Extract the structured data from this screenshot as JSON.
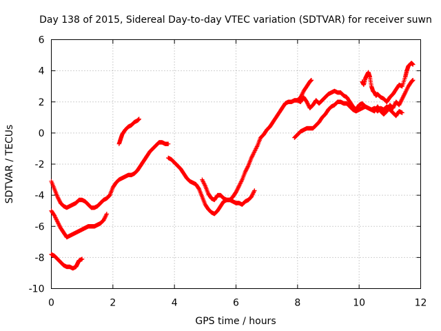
{
  "chart_data": {
    "type": "scatter",
    "title": "Day 138 of 2015, Sidereal Day-to-day VTEC variation (SDTVAR) for receiver suwn",
    "xlabel": "GPS time / hours",
    "ylabel": "SDTVAR / TECUs",
    "xlim": [
      0,
      12
    ],
    "ylim": [
      -10,
      6
    ],
    "xticks": [
      "0",
      "2",
      "4",
      "6",
      "8",
      "10",
      "12"
    ],
    "yticks": [
      "-10",
      "-8",
      "-6",
      "-4",
      "-2",
      "0",
      "2",
      "4",
      "6"
    ],
    "grid": true,
    "legend": "none",
    "marker": "plus",
    "color": "#ff0000",
    "series": [
      {
        "values": [
          [
            0.0,
            -7.8
          ],
          [
            0.1,
            -7.9
          ],
          [
            0.2,
            -8.1
          ],
          [
            0.3,
            -8.3
          ],
          [
            0.4,
            -8.5
          ],
          [
            0.5,
            -8.6
          ],
          [
            0.6,
            -8.6
          ],
          [
            0.7,
            -8.7
          ],
          [
            0.8,
            -8.6
          ],
          [
            0.85,
            -8.4
          ],
          [
            0.9,
            -8.2
          ],
          [
            1.0,
            -8.1
          ]
        ]
      },
      {
        "values": [
          [
            0.0,
            -5.0
          ],
          [
            0.1,
            -5.3
          ],
          [
            0.2,
            -5.7
          ],
          [
            0.3,
            -6.1
          ],
          [
            0.4,
            -6.4
          ],
          [
            0.5,
            -6.7
          ],
          [
            0.6,
            -6.6
          ],
          [
            0.7,
            -6.5
          ],
          [
            0.8,
            -6.4
          ],
          [
            0.9,
            -6.3
          ],
          [
            1.0,
            -6.2
          ],
          [
            1.1,
            -6.1
          ],
          [
            1.2,
            -6.0
          ],
          [
            1.3,
            -6.0
          ],
          [
            1.4,
            -6.0
          ],
          [
            1.5,
            -5.9
          ],
          [
            1.6,
            -5.8
          ],
          [
            1.7,
            -5.6
          ],
          [
            1.8,
            -5.2
          ]
        ]
      },
      {
        "values": [
          [
            0.0,
            -3.1
          ],
          [
            0.1,
            -3.6
          ],
          [
            0.2,
            -4.1
          ],
          [
            0.3,
            -4.5
          ],
          [
            0.4,
            -4.7
          ],
          [
            0.5,
            -4.8
          ],
          [
            0.6,
            -4.7
          ],
          [
            0.7,
            -4.6
          ],
          [
            0.8,
            -4.5
          ],
          [
            0.9,
            -4.3
          ],
          [
            1.0,
            -4.3
          ],
          [
            1.1,
            -4.4
          ],
          [
            1.2,
            -4.6
          ],
          [
            1.3,
            -4.8
          ],
          [
            1.4,
            -4.8
          ],
          [
            1.5,
            -4.7
          ],
          [
            1.6,
            -4.5
          ],
          [
            1.7,
            -4.3
          ],
          [
            1.8,
            -4.2
          ],
          [
            1.9,
            -4.0
          ],
          [
            2.0,
            -3.5
          ],
          [
            2.1,
            -3.2
          ],
          [
            2.2,
            -3.0
          ],
          [
            2.3,
            -2.9
          ],
          [
            2.4,
            -2.8
          ],
          [
            2.5,
            -2.7
          ],
          [
            2.6,
            -2.7
          ],
          [
            2.7,
            -2.6
          ],
          [
            2.8,
            -2.4
          ],
          [
            2.9,
            -2.1
          ],
          [
            3.0,
            -1.8
          ],
          [
            3.1,
            -1.5
          ],
          [
            3.2,
            -1.2
          ],
          [
            3.3,
            -1.0
          ],
          [
            3.4,
            -0.8
          ],
          [
            3.5,
            -0.6
          ],
          [
            3.6,
            -0.6
          ],
          [
            3.7,
            -0.7
          ],
          [
            3.8,
            -0.7
          ]
        ]
      },
      {
        "values": [
          [
            2.2,
            -0.7
          ],
          [
            2.25,
            -0.4
          ],
          [
            2.3,
            -0.1
          ],
          [
            2.4,
            0.2
          ],
          [
            2.5,
            0.4
          ],
          [
            2.6,
            0.5
          ],
          [
            2.7,
            0.7
          ],
          [
            2.8,
            0.8
          ],
          [
            2.85,
            0.9
          ]
        ]
      },
      {
        "values": [
          [
            3.8,
            -1.6
          ],
          [
            3.9,
            -1.7
          ],
          [
            4.0,
            -1.9
          ],
          [
            4.1,
            -2.1
          ],
          [
            4.2,
            -2.3
          ],
          [
            4.3,
            -2.6
          ],
          [
            4.4,
            -2.9
          ],
          [
            4.5,
            -3.1
          ],
          [
            4.6,
            -3.2
          ],
          [
            4.7,
            -3.3
          ],
          [
            4.8,
            -3.6
          ],
          [
            4.9,
            -4.1
          ],
          [
            5.0,
            -4.6
          ],
          [
            5.1,
            -4.9
          ],
          [
            5.2,
            -5.1
          ],
          [
            5.3,
            -5.2
          ],
          [
            5.4,
            -5.0
          ],
          [
            5.5,
            -4.7
          ],
          [
            5.6,
            -4.4
          ],
          [
            5.7,
            -4.3
          ],
          [
            5.8,
            -4.3
          ],
          [
            5.9,
            -4.1
          ],
          [
            6.0,
            -3.8
          ],
          [
            6.1,
            -3.4
          ],
          [
            6.2,
            -3.0
          ],
          [
            6.3,
            -2.5
          ],
          [
            6.4,
            -2.1
          ],
          [
            6.5,
            -1.6
          ],
          [
            6.6,
            -1.2
          ],
          [
            6.7,
            -0.8
          ],
          [
            6.8,
            -0.3
          ],
          [
            6.9,
            -0.1
          ],
          [
            7.0,
            0.2
          ],
          [
            7.1,
            0.4
          ],
          [
            7.2,
            0.7
          ],
          [
            7.3,
            1.0
          ],
          [
            7.4,
            1.3
          ],
          [
            7.5,
            1.6
          ],
          [
            7.6,
            1.9
          ],
          [
            7.7,
            2.0
          ],
          [
            7.8,
            2.0
          ],
          [
            7.9,
            2.1
          ],
          [
            8.0,
            2.1
          ],
          [
            8.1,
            2.0
          ],
          [
            8.2,
            2.3
          ],
          [
            8.3,
            2.0
          ],
          [
            8.4,
            1.6
          ],
          [
            8.5,
            1.8
          ],
          [
            8.6,
            2.1
          ],
          [
            8.7,
            1.9
          ],
          [
            8.8,
            2.1
          ],
          [
            8.9,
            2.3
          ],
          [
            9.0,
            2.5
          ],
          [
            9.1,
            2.6
          ],
          [
            9.2,
            2.7
          ],
          [
            9.3,
            2.6
          ],
          [
            9.4,
            2.6
          ],
          [
            9.5,
            2.4
          ],
          [
            9.6,
            2.3
          ],
          [
            9.7,
            2.0
          ],
          [
            9.8,
            1.7
          ],
          [
            9.9,
            1.5
          ],
          [
            10.0,
            1.8
          ],
          [
            10.1,
            1.9
          ],
          [
            10.2,
            1.7
          ],
          [
            10.3,
            1.6
          ],
          [
            10.4,
            1.5
          ],
          [
            10.5,
            1.4
          ],
          [
            10.6,
            1.7
          ],
          [
            10.7,
            1.4
          ],
          [
            10.8,
            1.2
          ],
          [
            10.9,
            1.4
          ],
          [
            11.0,
            1.8
          ],
          [
            11.1,
            1.6
          ],
          [
            11.2,
            2.0
          ],
          [
            11.3,
            1.8
          ],
          [
            11.4,
            2.2
          ],
          [
            11.5,
            2.6
          ],
          [
            11.6,
            3.0
          ],
          [
            11.7,
            3.3
          ],
          [
            11.75,
            3.4
          ]
        ]
      },
      {
        "values": [
          [
            4.9,
            -3.0
          ],
          [
            5.0,
            -3.4
          ],
          [
            5.1,
            -3.9
          ],
          [
            5.2,
            -4.2
          ],
          [
            5.3,
            -4.3
          ],
          [
            5.4,
            -4.0
          ],
          [
            5.5,
            -4.0
          ],
          [
            5.6,
            -4.2
          ],
          [
            5.7,
            -4.3
          ],
          [
            5.8,
            -4.3
          ],
          [
            5.9,
            -4.4
          ],
          [
            6.0,
            -4.5
          ],
          [
            6.1,
            -4.5
          ],
          [
            6.2,
            -4.6
          ],
          [
            6.3,
            -4.4
          ],
          [
            6.4,
            -4.3
          ],
          [
            6.5,
            -4.1
          ],
          [
            6.6,
            -3.7
          ]
        ]
      },
      {
        "values": [
          [
            7.9,
            -0.3
          ],
          [
            8.0,
            -0.1
          ],
          [
            8.1,
            0.1
          ],
          [
            8.2,
            0.2
          ],
          [
            8.3,
            0.3
          ],
          [
            8.4,
            0.3
          ],
          [
            8.5,
            0.3
          ],
          [
            8.6,
            0.5
          ],
          [
            8.7,
            0.7
          ],
          [
            8.8,
            1.0
          ],
          [
            8.9,
            1.2
          ],
          [
            9.0,
            1.5
          ],
          [
            9.1,
            1.7
          ],
          [
            9.2,
            1.8
          ],
          [
            9.3,
            2.0
          ],
          [
            9.4,
            2.0
          ],
          [
            9.5,
            1.9
          ],
          [
            9.6,
            1.9
          ],
          [
            9.7,
            1.7
          ],
          [
            9.8,
            1.5
          ],
          [
            9.9,
            1.4
          ],
          [
            10.0,
            1.5
          ],
          [
            10.1,
            1.6
          ],
          [
            10.2,
            1.7
          ],
          [
            10.3,
            1.6
          ],
          [
            10.4,
            1.5
          ],
          [
            10.5,
            1.6
          ],
          [
            10.6,
            1.4
          ],
          [
            10.7,
            1.6
          ],
          [
            10.8,
            1.5
          ],
          [
            10.9,
            1.7
          ],
          [
            11.0,
            1.5
          ],
          [
            11.1,
            1.3
          ],
          [
            11.2,
            1.1
          ],
          [
            11.3,
            1.4
          ],
          [
            11.4,
            1.3
          ]
        ]
      },
      {
        "values": [
          [
            8.0,
            2.1
          ],
          [
            8.1,
            2.3
          ],
          [
            8.2,
            2.7
          ],
          [
            8.3,
            3.0
          ],
          [
            8.4,
            3.3
          ],
          [
            8.45,
            3.4
          ]
        ]
      },
      {
        "values": [
          [
            10.1,
            3.3
          ],
          [
            10.15,
            3.1
          ],
          [
            10.2,
            3.5
          ],
          [
            10.25,
            3.7
          ],
          [
            10.3,
            3.9
          ],
          [
            10.35,
            3.6
          ],
          [
            10.4,
            3.0
          ],
          [
            10.45,
            2.7
          ],
          [
            10.5,
            2.6
          ],
          [
            10.55,
            2.4
          ],
          [
            10.6,
            2.5
          ],
          [
            10.7,
            2.3
          ],
          [
            10.8,
            2.2
          ],
          [
            10.9,
            2.0
          ],
          [
            11.0,
            2.3
          ],
          [
            11.1,
            2.5
          ],
          [
            11.2,
            2.8
          ],
          [
            11.3,
            3.1
          ],
          [
            11.4,
            3.0
          ],
          [
            11.5,
            3.6
          ],
          [
            11.55,
            4.0
          ],
          [
            11.6,
            4.3
          ],
          [
            11.7,
            4.5
          ],
          [
            11.75,
            4.4
          ]
        ]
      }
    ]
  }
}
